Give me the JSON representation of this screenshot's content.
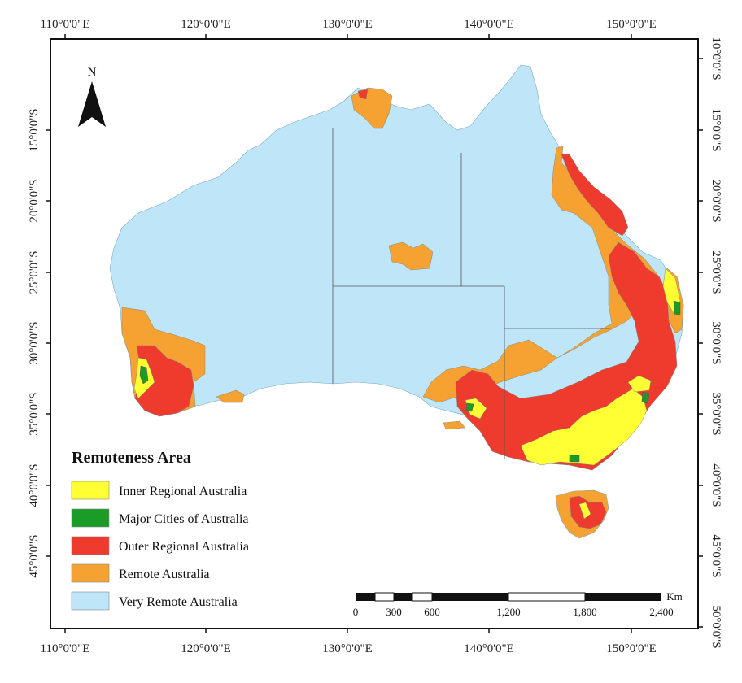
{
  "map": {
    "top_longitude_labels": [
      "110°0'0\"E",
      "120°0'0\"E",
      "130°0'0\"E",
      "140°0'0\"E",
      "150°0'0\"E"
    ],
    "bottom_longitude_labels": [
      "110°0'0\"E",
      "120°0'0\"E",
      "130°0'0\"E",
      "140°0'0\"E",
      "150°0'0\"E"
    ],
    "left_latitude_labels": [
      "15°0'0\"S",
      "20°0'0\"S",
      "25°0'0\"S",
      "30°0'0\"S",
      "35°0'0\"S",
      "40°0'0\"S",
      "45°0'0\"S"
    ],
    "right_latitude_labels": [
      "10°0'0\"S",
      "15°0'0\"S",
      "20°0'0\"S",
      "25°0'0\"S",
      "30°0'0\"S",
      "35°0'0\"S",
      "40°0'0\"S",
      "45°0'0\"S",
      "50°0'0\"S"
    ],
    "north_label": "N",
    "north_icon": "north-arrow-icon"
  },
  "legend": {
    "title": "Remoteness Area",
    "items": [
      {
        "label": "Inner Regional Australia",
        "color": "#ffff33"
      },
      {
        "label": "Major Cities of Australia",
        "color": "#1a9c26"
      },
      {
        "label": "Outer Regional Australia",
        "color": "#ee3b2d"
      },
      {
        "label": "Remote Australia",
        "color": "#f5a233"
      },
      {
        "label": "Very Remote Australia",
        "color": "#bfe6f8"
      }
    ]
  },
  "scale_bar": {
    "unit": "Km",
    "labels": [
      "0",
      "300",
      "600",
      "1,200",
      "1,800",
      "2,400"
    ]
  }
}
